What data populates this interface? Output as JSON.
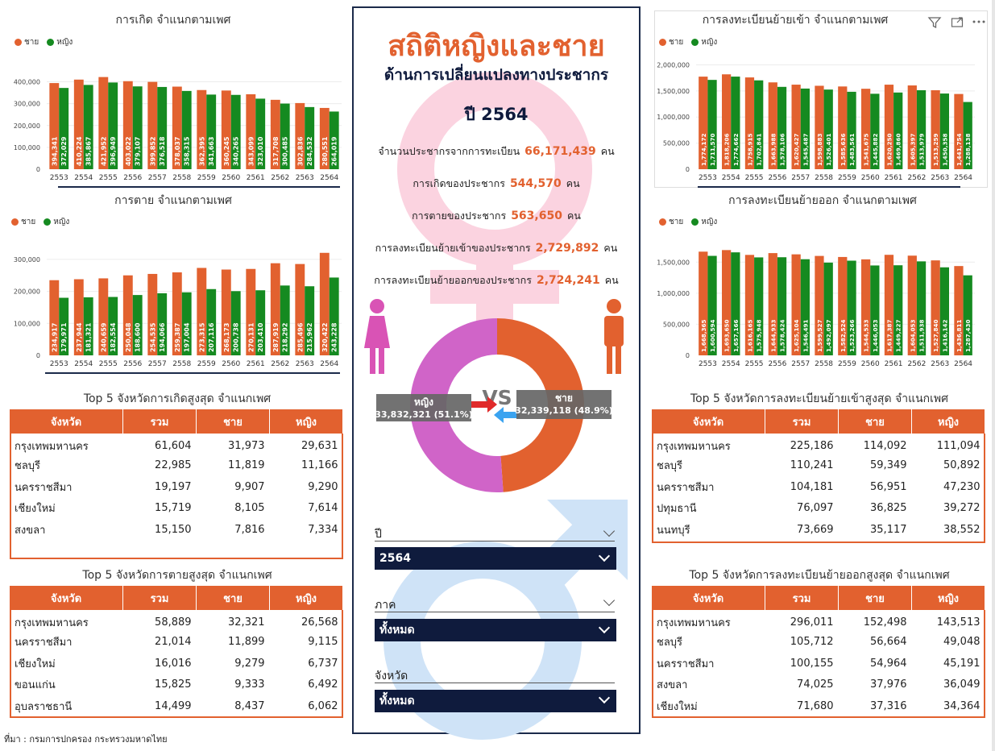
{
  "legend": {
    "male": "ชาย",
    "female": "หญิง"
  },
  "colors": {
    "male": "#e2612f",
    "female": "#158a20",
    "header": "#e2612f",
    "navy": "#0f1b3d",
    "pink": "#d064c8"
  },
  "chart_data": [
    {
      "id": "births",
      "type": "bar",
      "title": "การเกิด จำแนกตามเพศ",
      "categories": [
        "2553",
        "2554",
        "2555",
        "2556",
        "2557",
        "2558",
        "2559",
        "2560",
        "2561",
        "2562",
        "2563",
        "2564"
      ],
      "ylim": [
        0,
        450000
      ],
      "yticks": [
        "0",
        "100,000",
        "200,000",
        "300,000",
        "400,000"
      ],
      "ytick_values": [
        0,
        100000,
        200000,
        300000,
        400000
      ],
      "series": [
        {
          "name": "ชาย",
          "values": [
            394341,
            410224,
            421952,
            403022,
            399852,
            378037,
            362395,
            360245,
            343099,
            317708,
            302836,
            280551
          ],
          "labels": [
            "394,341",
            "410,224",
            "421,952",
            "403,022",
            "399,852",
            "378,037",
            "362,395",
            "360,245",
            "343,099",
            "317,708",
            "302,836",
            "280,551"
          ]
        },
        {
          "name": "หญิง",
          "values": [
            372029,
            385867,
            396949,
            379107,
            376518,
            358315,
            341663,
            340265,
            323010,
            300485,
            284532,
            264019
          ],
          "labels": [
            "372,029",
            "385,867",
            "396,949",
            "379,107",
            "376,518",
            "358,315",
            "341,663",
            "340,265",
            "323,010",
            "300,485",
            "284,532",
            "264,019"
          ]
        }
      ]
    },
    {
      "id": "deaths",
      "type": "bar",
      "title": "การตาย จำแนกตามเพศ",
      "categories": [
        "2553",
        "2554",
        "2555",
        "2556",
        "2557",
        "2558",
        "2559",
        "2560",
        "2561",
        "2562",
        "2563",
        "2564"
      ],
      "ylim": [
        0,
        340000
      ],
      "yticks": [
        "0",
        "100,000",
        "200,000",
        "300,000"
      ],
      "ytick_values": [
        0,
        100000,
        200000,
        300000
      ],
      "series": [
        {
          "name": "ชาย",
          "values": [
            234917,
            237944,
            240659,
            250048,
            254535,
            259387,
            273315,
            268173,
            270131,
            287919,
            285496,
            320422
          ],
          "labels": [
            "234,917",
            "237,944",
            "240,659",
            "250,048",
            "254,535",
            "259,387",
            "273,315",
            "268,173",
            "270,131",
            "287,919",
            "285,496",
            "320,422"
          ]
        },
        {
          "name": "หญิง",
          "values": [
            179971,
            181321,
            182554,
            188600,
            194066,
            197004,
            207116,
            200738,
            203410,
            218292,
            215962,
            243228
          ],
          "labels": [
            "179,971",
            "181,321",
            "182,554",
            "188,600",
            "194,066",
            "197,004",
            "207,116",
            "200,738",
            "203,410",
            "218,292",
            "215,962",
            "243,228"
          ]
        }
      ]
    },
    {
      "id": "move_in",
      "type": "bar",
      "title": "การลงทะเบียนย้ายเข้า จำแนกตามเพศ",
      "categories": [
        "2553",
        "2554",
        "2555",
        "2556",
        "2557",
        "2558",
        "2559",
        "2560",
        "2561",
        "2562",
        "2563",
        "2564"
      ],
      "ylim": [
        0,
        2100000
      ],
      "yticks": [
        "0",
        "500,000",
        "1,000,000",
        "1,500,000",
        "2,000,000"
      ],
      "ytick_values": [
        0,
        500000,
        1000000,
        1500000,
        2000000
      ],
      "series": [
        {
          "name": "ชาย",
          "values": [
            1774172,
            1818206,
            1758915,
            1663988,
            1620427,
            1598883,
            1585636,
            1541675,
            1620250,
            1605397,
            1513259,
            1441754
          ],
          "labels": [
            "1,774,172",
            "1,818,206",
            "1,758,915",
            "1,663,988",
            "1,620,427",
            "1,598,883",
            "1,585,636",
            "1,541,675",
            "1,620,250",
            "1,605,397",
            "1,513,259",
            "1,441,754"
          ]
        },
        {
          "name": "หญิง",
          "values": [
            1711570,
            1774662,
            1702841,
            1578106,
            1545487,
            1526401,
            1483561,
            1445882,
            1469860,
            1513979,
            1450358,
            1288138
          ],
          "labels": [
            "1,711,570",
            "1,774,662",
            "1,702,841",
            "1,578,106",
            "1,545,487",
            "1,526,401",
            "1,483,561",
            "1,445,882",
            "1,469,860",
            "1,513,979",
            "1,450,358",
            "1,288,138"
          ]
        }
      ]
    },
    {
      "id": "move_out",
      "type": "bar",
      "title": "การลงทะเบียนย้ายออก จำแนกตามเพศ",
      "categories": [
        "2553",
        "2554",
        "2555",
        "2556",
        "2557",
        "2558",
        "2559",
        "2560",
        "2561",
        "2562",
        "2563",
        "2564"
      ],
      "ylim": [
        0,
        1750000
      ],
      "yticks": [
        "0",
        "500,000",
        "1,000,000",
        "1,500,000"
      ],
      "ytick_values": [
        0,
        500000,
        1000000,
        1500000
      ],
      "series": [
        {
          "name": "ชาย",
          "values": [
            1668365,
            1693650,
            1616165,
            1644933,
            1625104,
            1599527,
            1582524,
            1544533,
            1617387,
            1604053,
            1527840,
            1436811
          ],
          "labels": [
            "1,668,365",
            "1,693,650",
            "1,616,165",
            "1,644,933",
            "1,625,104",
            "1,599,527",
            "1,582,524",
            "1,544,533",
            "1,617,387",
            "1,604,053",
            "1,527,840",
            "1,436,811"
          ]
        },
        {
          "name": "หญิง",
          "values": [
            1600594,
            1657166,
            1575948,
            1578424,
            1546491,
            1492097,
            1523266,
            1446053,
            1449227,
            1511938,
            1416142,
            1287430
          ],
          "labels": [
            "1,600,594",
            "1,657,166",
            "1,575,948",
            "1,578,424",
            "1,546,491",
            "1,492,097",
            "1,523,266",
            "1,446,053",
            "1,449,227",
            "1,511,938",
            "1,416,142",
            "1,287,430"
          ]
        }
      ]
    },
    {
      "id": "gender_donut",
      "type": "pie",
      "labels": [
        "หญิง",
        "ชาย"
      ],
      "values": [
        33832321,
        32339118
      ],
      "value_labels": [
        "33,832,321 (51.1%)",
        "32,339,118 (48.9%)"
      ],
      "center_text": "VS"
    }
  ],
  "tables": {
    "headers": [
      "จังหวัด",
      "รวม",
      "ชาย",
      "หญิง"
    ],
    "births": {
      "title": "Top 5 จังหวัดการเกิดสูงสุด จำแนกเพศ",
      "rows": [
        [
          "กรุงเทพมหานคร",
          "61,604",
          "31,973",
          "29,631"
        ],
        [
          "ชลบุรี",
          "22,985",
          "11,819",
          "11,166"
        ],
        [
          "นครราชสีมา",
          "19,197",
          "9,907",
          "9,290"
        ],
        [
          "เชียงใหม่",
          "15,719",
          "8,105",
          "7,614"
        ],
        [
          "สงขลา",
          "15,150",
          "7,816",
          "7,334"
        ]
      ]
    },
    "deaths": {
      "title": "Top 5 จังหวัดการตายสูงสุด จำแนกเพศ",
      "rows": [
        [
          "กรุงเทพมหานคร",
          "58,889",
          "32,321",
          "26,568"
        ],
        [
          "นครราชสีมา",
          "21,014",
          "11,899",
          "9,115"
        ],
        [
          "เชียงใหม่",
          "16,016",
          "9,279",
          "6,737"
        ],
        [
          "ขอนแก่น",
          "15,825",
          "9,333",
          "6,492"
        ],
        [
          "อุบลราชธานี",
          "14,499",
          "8,437",
          "6,062"
        ]
      ]
    },
    "move_in": {
      "title": "Top 5 จังหวัดการลงทะเบียนย้ายเข้าสูงสุด จำแนกเพศ",
      "rows": [
        [
          "กรุงเทพมหานคร",
          "225,186",
          "114,092",
          "111,094"
        ],
        [
          "ชลบุรี",
          "110,241",
          "59,349",
          "50,892"
        ],
        [
          "นครราชสีมา",
          "104,181",
          "56,951",
          "47,230"
        ],
        [
          "ปทุมธานี",
          "76,097",
          "36,825",
          "39,272"
        ],
        [
          "นนทบุรี",
          "73,669",
          "35,117",
          "38,552"
        ]
      ]
    },
    "move_out": {
      "title": "Top 5 จังหวัดการลงทะเบียนย้ายออกสูงสุด จำแนกเพศ",
      "rows": [
        [
          "กรุงเทพมหานคร",
          "296,011",
          "152,498",
          "143,513"
        ],
        [
          "ชลบุรี",
          "105,712",
          "56,664",
          "49,048"
        ],
        [
          "นครราชสีมา",
          "100,155",
          "54,964",
          "45,191"
        ],
        [
          "สงขลา",
          "74,025",
          "37,976",
          "36,049"
        ],
        [
          "เชียงใหม่",
          "71,680",
          "37,316",
          "34,364"
        ]
      ]
    }
  },
  "panel": {
    "title": "สถิติหญิงและชาย",
    "subtitle": "ด้านการเปลี่ยนแปลงทางประชากร",
    "year_label": "ปี 2564",
    "stats": [
      {
        "label": "จำนวนประชากรจากการทะเบียน",
        "value": "66,171,439",
        "unit": "คน"
      },
      {
        "label": "การเกิดของประชากร",
        "value": "544,570",
        "unit": "คน"
      },
      {
        "label": "การตายของประชากร",
        "value": "563,650",
        "unit": "คน"
      },
      {
        "label": "การลงทะเบียนย้ายเข้าของประชากร",
        "value": "2,729,892",
        "unit": "คน"
      },
      {
        "label": "การลงทะเบียนย้ายออกของประชากร",
        "value": "2,724,241",
        "unit": "คน"
      }
    ],
    "slicers": [
      {
        "label": "ปี",
        "value": "2564"
      },
      {
        "label": "ภาค",
        "value": "ทั้งหมด"
      },
      {
        "label": "จังหวัด",
        "value": "ทั้งหมด"
      }
    ]
  },
  "source": "ที่มา : กรมการปกครอง กระทรวงมหาดไทย"
}
